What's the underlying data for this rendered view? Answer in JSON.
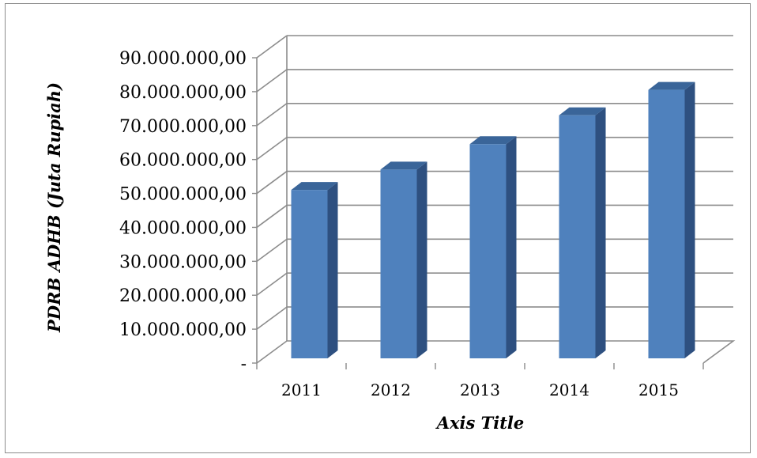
{
  "chart_data": {
    "type": "bar",
    "style": "3d-column",
    "categories": [
      "2011",
      "2012",
      "2013",
      "2014",
      "2015"
    ],
    "values": [
      51500000,
      57500000,
      65000000,
      73500000,
      81000000
    ],
    "xlabel": "Axis Title",
    "ylabel": "PDRB ADHB (Juta Rupiah)",
    "ylim": [
      0,
      90000000
    ],
    "yticks": [
      "-",
      "10.000.000,00",
      "20.000.000,00",
      "30.000.000,00",
      "40.000.000,00",
      "50.000.000,00",
      "60.000.000,00",
      "70.000.000,00",
      "80.000.000,00",
      "90.000.000,00"
    ],
    "grid": true,
    "legend": "none",
    "colors": {
      "bar_front": "#4f81bd",
      "bar_side": "#2e5080",
      "bar_top": "#3a6599",
      "grid": "#8c8c8c"
    }
  }
}
